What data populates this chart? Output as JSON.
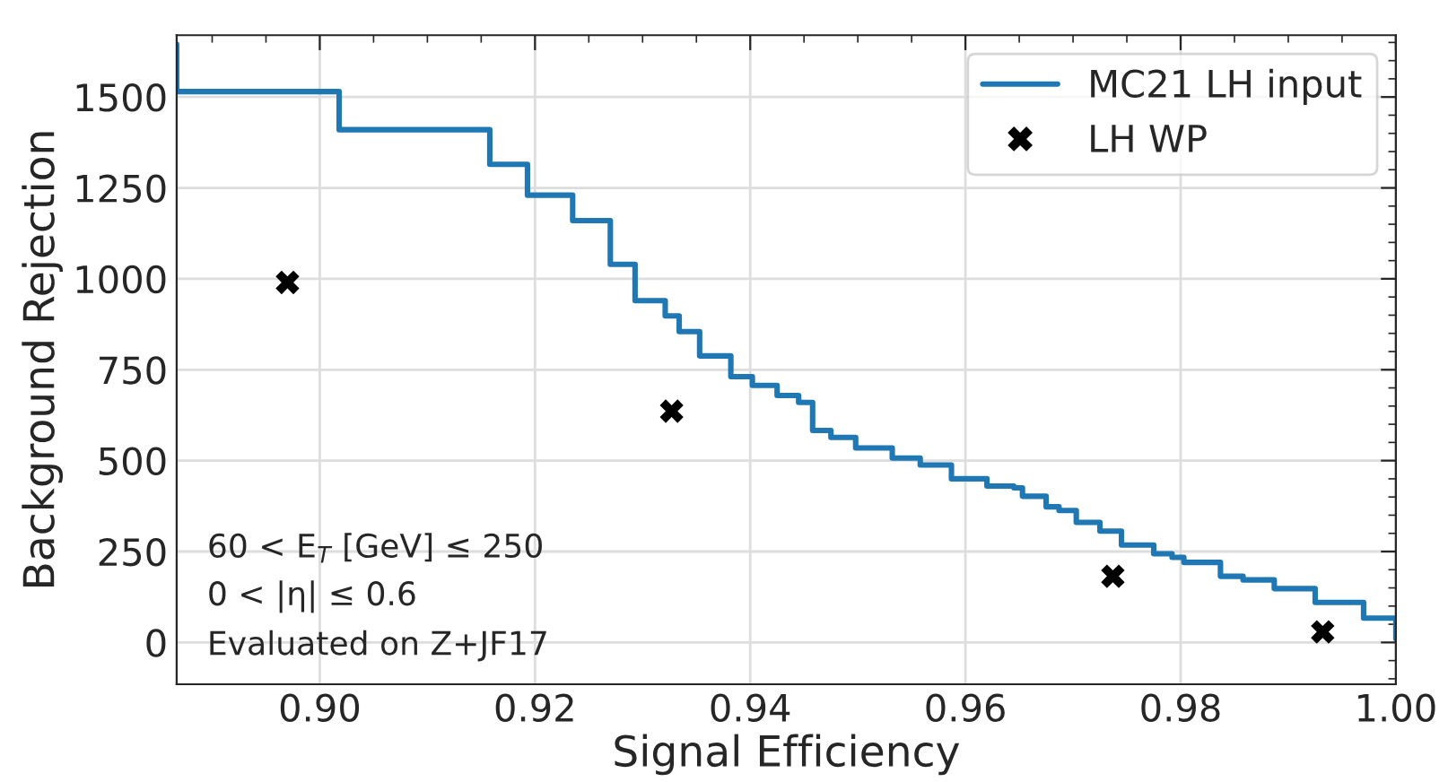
{
  "chart_data": {
    "type": "step",
    "xlabel": "Signal Efficiency",
    "ylabel": "Background Rejection",
    "xlim": [
      0.8867,
      1.0
    ],
    "ylim": [
      -115,
      1670
    ],
    "xticks": [
      {
        "value": 0.9,
        "label": "0.90"
      },
      {
        "value": 0.92,
        "label": "0.92"
      },
      {
        "value": 0.94,
        "label": "0.94"
      },
      {
        "value": 0.96,
        "label": "0.96"
      },
      {
        "value": 0.98,
        "label": "0.98"
      },
      {
        "value": 1.0,
        "label": "1.00"
      }
    ],
    "yticks": [
      0,
      250,
      500,
      750,
      1000,
      1250,
      1500
    ],
    "grid": true,
    "legend": "top right",
    "annotations": [
      "60 < E$_{T}$ [GeV] ≤ 250",
      "0 < |η| ≤ 0.6",
      "Evaluated on Z+JF17"
    ],
    "series": [
      {
        "name": "MC21 LH input",
        "color": "#1f77b4",
        "marker": "none",
        "line_style": "solid",
        "x": [
          0.8867,
          0.8867,
          0.9018,
          0.9158,
          0.9193,
          0.9235,
          0.927,
          0.9293,
          0.9321,
          0.9334,
          0.9353,
          0.9382,
          0.9402,
          0.9425,
          0.9445,
          0.9458,
          0.9475,
          0.9498,
          0.9532,
          0.9558,
          0.9587,
          0.962,
          0.9645,
          0.9653,
          0.9675,
          0.9687,
          0.9703,
          0.9725,
          0.9745,
          0.9775,
          0.9792,
          0.9803,
          0.9837,
          0.9858,
          0.9887,
          0.9925,
          0.997,
          1.0
        ],
        "values": [
          1645,
          1515,
          1410,
          1315,
          1230,
          1160,
          1040,
          940,
          898,
          855,
          788,
          731,
          707,
          679,
          660,
          583,
          564,
          535,
          507,
          488,
          450,
          430,
          425,
          402,
          373,
          363,
          330,
          306,
          268,
          244,
          234,
          220,
          182,
          172,
          148,
          110,
          67,
          10
        ]
      },
      {
        "name": "LH WP",
        "type": "scatter",
        "color": "#000000",
        "marker": "cross",
        "x": [
          0.897,
          0.9327,
          0.9737,
          0.9932
        ],
        "values": [
          990,
          636,
          182,
          29
        ]
      }
    ]
  }
}
